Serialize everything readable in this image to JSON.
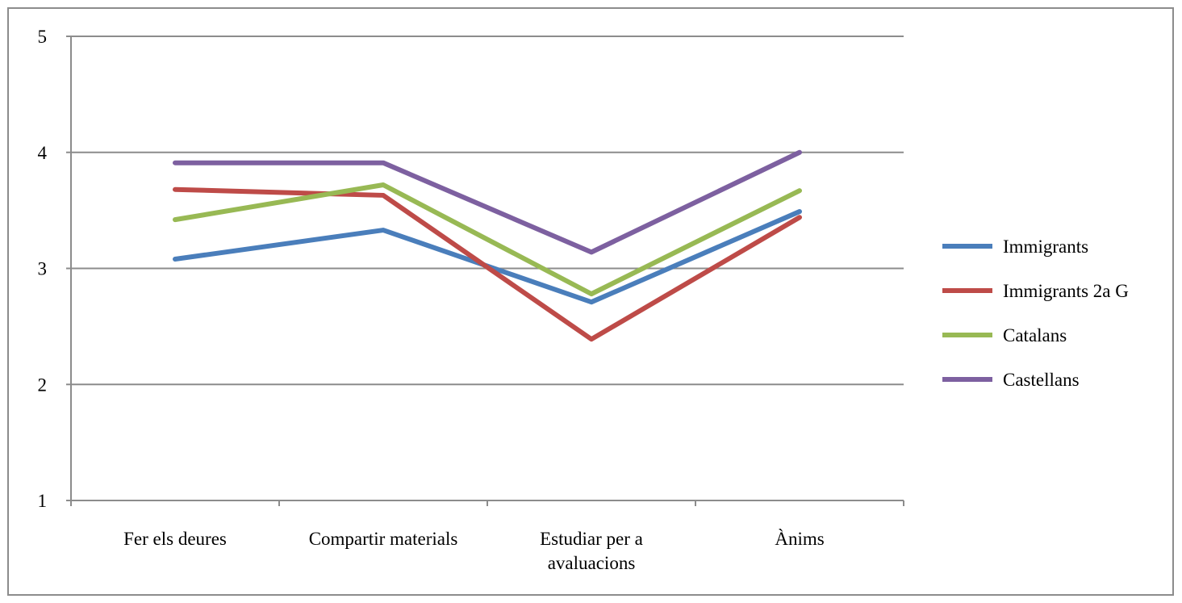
{
  "chart_data": {
    "type": "line",
    "categories": [
      [
        "Fer els deures"
      ],
      [
        "Compartir materials"
      ],
      [
        "Estudiar per a",
        "avaluacions"
      ],
      [
        "Ànims"
      ]
    ],
    "ylim": [
      1,
      5
    ],
    "yticks": [
      1,
      2,
      3,
      4,
      5
    ],
    "grid": true,
    "legend_position": "right",
    "series": [
      {
        "name": "Immigrants",
        "color": "#4a7ebb",
        "values": [
          3.08,
          3.33,
          2.71,
          3.49
        ]
      },
      {
        "name": "Immigrants 2a G",
        "color": "#be4b48",
        "values": [
          3.68,
          3.63,
          2.39,
          3.44
        ]
      },
      {
        "name": "Catalans",
        "color": "#98b954",
        "values": [
          3.42,
          3.72,
          2.78,
          3.67
        ]
      },
      {
        "name": "Castellans",
        "color": "#7d60a0",
        "values": [
          3.91,
          3.91,
          3.14,
          4.0
        ]
      }
    ]
  }
}
